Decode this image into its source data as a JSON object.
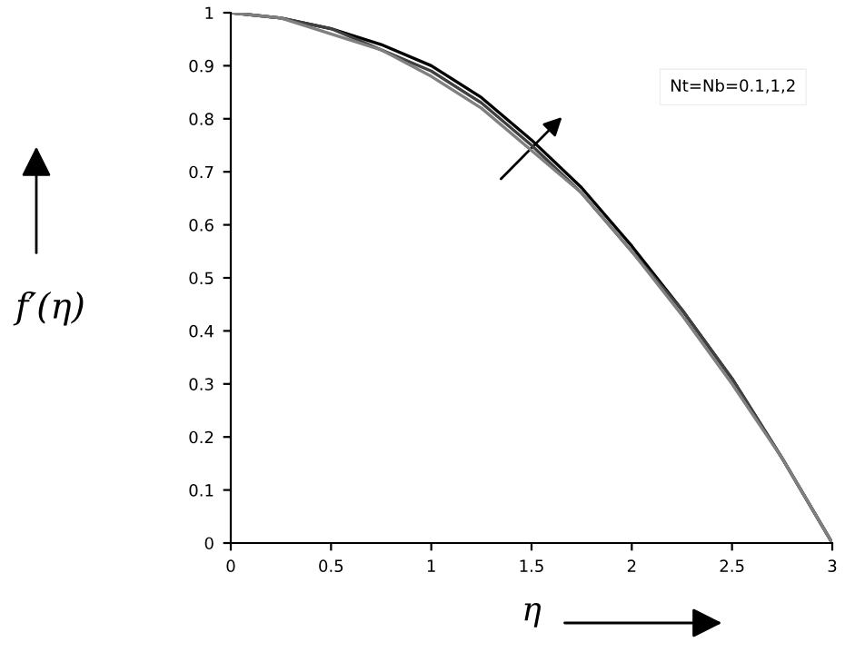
{
  "chart_data": {
    "type": "line",
    "xlabel": "η",
    "ylabel": "f′(η)",
    "x": [
      0,
      0.25,
      0.5,
      0.75,
      1,
      1.25,
      1.5,
      1.75,
      2,
      2.25,
      2.5,
      2.75,
      3
    ],
    "series": [
      {
        "color": "#000000",
        "values": [
          1,
          0.99,
          0.97,
          0.94,
          0.9,
          0.84,
          0.76,
          0.67,
          0.56,
          0.44,
          0.31,
          0.16,
          0
        ]
      },
      {
        "color": "#404040",
        "values": [
          1,
          0.99,
          0.97,
          0.93,
          0.89,
          0.83,
          0.75,
          0.66,
          0.55,
          0.44,
          0.31,
          0.16,
          0
        ]
      },
      {
        "color": "#808080",
        "values": [
          1,
          0.99,
          0.96,
          0.93,
          0.88,
          0.82,
          0.74,
          0.66,
          0.55,
          0.43,
          0.3,
          0.16,
          0
        ]
      }
    ],
    "annotations": [
      "Nt=Nb=0.1,1,2"
    ],
    "xlim": [
      0,
      3
    ],
    "ylim": [
      0,
      1
    ],
    "xticks": [
      0,
      0.5,
      1,
      1.5,
      2,
      2.5,
      3
    ],
    "yticks": [
      0,
      0.1,
      0.2,
      0.3,
      0.4,
      0.5,
      0.6,
      0.7,
      0.8,
      0.9,
      1
    ],
    "grid": false,
    "legend": false,
    "marker": "none",
    "line_style": "solid"
  }
}
